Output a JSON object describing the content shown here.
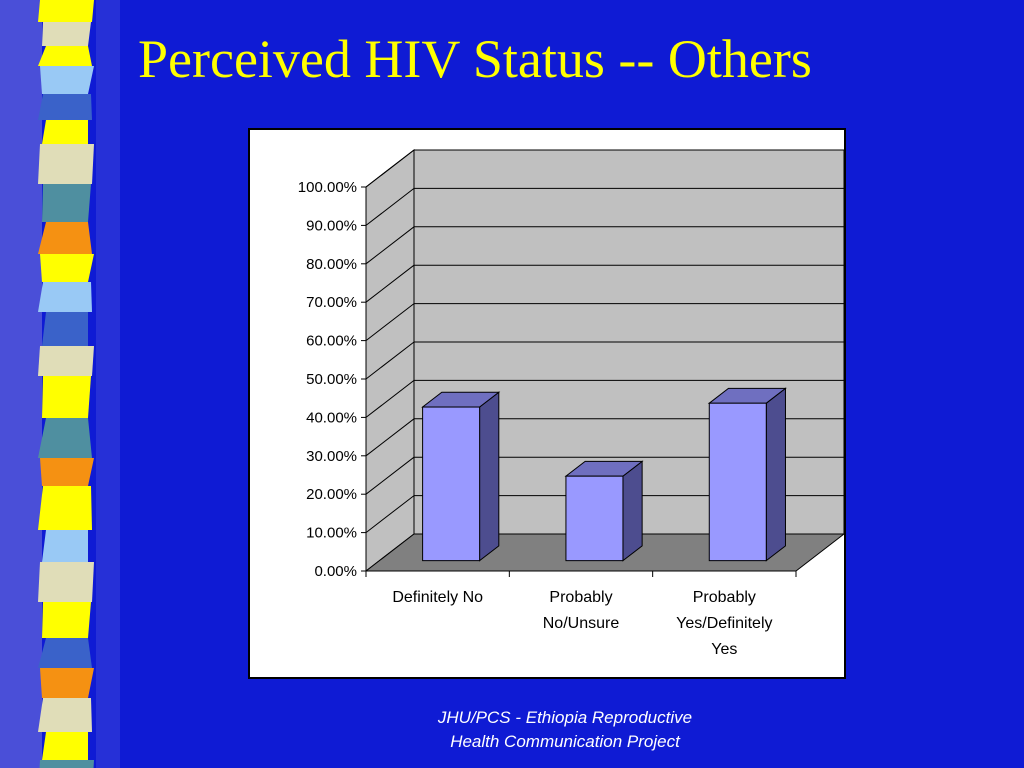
{
  "slide": {
    "title": "Perceived HIV Status -- Others",
    "footer_line1": "JHU/PCS - Ethiopia Reproductive",
    "footer_line2": "Health Communication Project",
    "colors": {
      "background": "#0f1bd4",
      "title": "#ffff00",
      "footer": "#ffffff",
      "stripe_palette": [
        "#ffff00",
        "#f59112",
        "#3a62c9",
        "#4f8fa0",
        "#e0ddb8",
        "#99c9f5"
      ]
    }
  },
  "chart_data": {
    "type": "bar",
    "style": "3d-column",
    "categories": [
      "Definitely No",
      "Probably No/Unsure",
      "Probably Yes/Definitely Yes"
    ],
    "category_lines": [
      [
        "Definitely No"
      ],
      [
        "Probably",
        "No/Unsure"
      ],
      [
        "Probably",
        "Yes/Definitely",
        "Yes"
      ]
    ],
    "values": [
      0.4,
      0.22,
      0.41
    ],
    "ylim": [
      0,
      1
    ],
    "yticks": [
      "0.00%",
      "10.00%",
      "20.00%",
      "30.00%",
      "40.00%",
      "50.00%",
      "60.00%",
      "70.00%",
      "80.00%",
      "90.00%",
      "100.00%"
    ],
    "grid": true,
    "legend": "none",
    "title": "",
    "xlabel": "",
    "ylabel": "",
    "colors": {
      "bar_front": "#9999ff",
      "bar_side": "#4d4d8f",
      "bar_top": "#6f6fc0",
      "wall": "#c0c0c0",
      "floor": "#808080"
    }
  }
}
